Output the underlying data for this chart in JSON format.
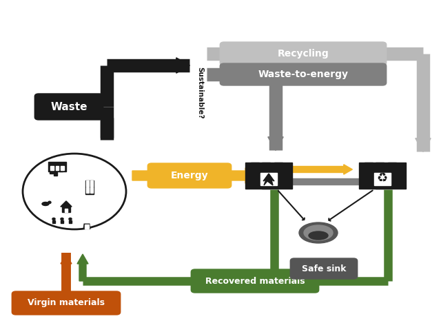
{
  "bg_color": "#ffffff",
  "dark": "#1a1a1a",
  "light_gray": "#b8b8b8",
  "dark_gray": "#808080",
  "yellow": "#f0b429",
  "green": "#4a7c2f",
  "orange": "#c0510a",
  "recycling_bg": "#c0c0c0",
  "wte_bg": "#808080",
  "waste_bg": "#1a1a1a",
  "energy_bg": "#f0b429",
  "recovered_bg": "#4a7c2f",
  "virgin_bg": "#c0510a",
  "safesink_bg": "#555555",
  "white": "#ffffff",
  "sustainable_text": "Sustainable?",
  "recycling_text": "Recycling",
  "wte_text": "Waste-to-energy",
  "waste_text": "Waste",
  "energy_text": "Energy",
  "recovered_text": "Recovered materials",
  "virgin_text": "Virgin materials",
  "safesink_text": "Safe sink",
  "fig_w": 6.4,
  "fig_h": 4.69,
  "dpi": 100
}
